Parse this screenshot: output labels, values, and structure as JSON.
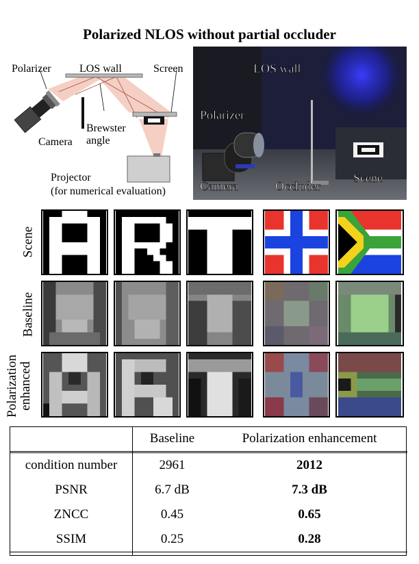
{
  "title": "Polarized NLOS without partial occluder",
  "diagram": {
    "labels": {
      "polarizer": "Polarizer",
      "los_wall": "LOS wall",
      "screen": "Screen",
      "camera": "Camera",
      "brewster": "Brewster",
      "angle": "angle",
      "projector": "Projector",
      "projector_note": "(for numerical evaluation)"
    }
  },
  "photo": {
    "labels": {
      "los_wall": "LOS wall",
      "polarizer": "Polarizer",
      "camera": "Camera",
      "occluder": "Occluder",
      "scene": "Scene"
    }
  },
  "rows": {
    "scene": "Scene",
    "baseline": "Baseline",
    "polarization_1": "Polarization",
    "polarization_2": "enhanced"
  },
  "table": {
    "headers": [
      "",
      "Baseline",
      "Polarization enhancement"
    ],
    "rows": [
      {
        "metric": "condition number",
        "baseline": "2961",
        "enhanced": "2012"
      },
      {
        "metric": "PSNR",
        "baseline": "6.7 dB",
        "enhanced": "7.3 dB"
      },
      {
        "metric": "ZNCC",
        "baseline": "0.45",
        "enhanced": "0.65"
      },
      {
        "metric": "SSIM",
        "baseline": "0.25",
        "enhanced": "0.28"
      }
    ]
  },
  "colors": {
    "red": "#e8342c",
    "blue": "#1a43e0",
    "green": "#3aa33a",
    "yellow": "#f2d21a",
    "beam": "#f3c7b8"
  }
}
